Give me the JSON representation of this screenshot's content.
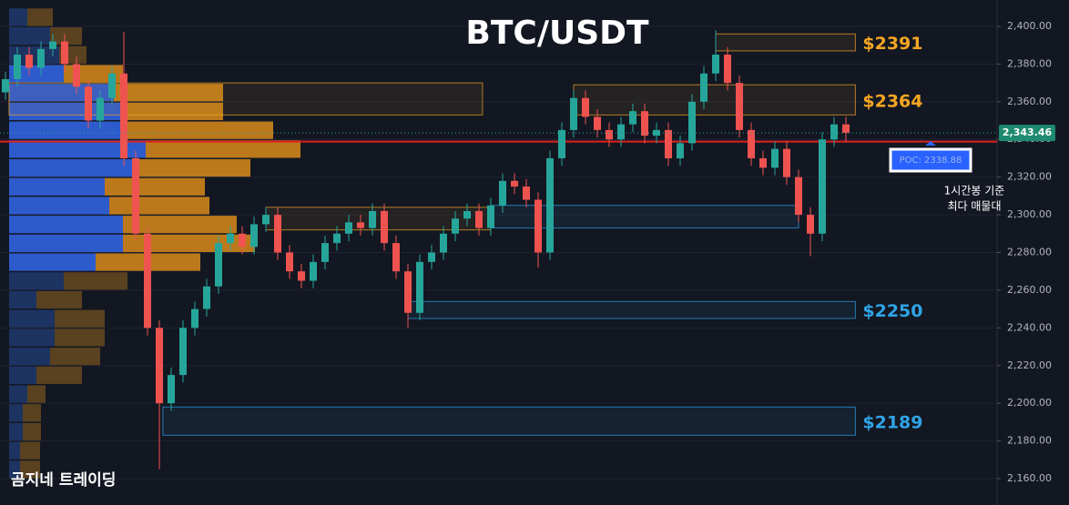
{
  "chart_data": {
    "type": "candlestick",
    "title": "BTC/USDT",
    "open": [
      2365,
      2372,
      2385,
      2378,
      2388,
      2392,
      2380,
      2368,
      2350,
      2362,
      2375,
      2330,
      2290,
      2240,
      2200,
      2215,
      2240,
      2250,
      2262,
      2285,
      2290,
      2283,
      2295,
      2300,
      2280,
      2270,
      2265,
      2275,
      2285,
      2290,
      2296,
      2293,
      2302,
      2285,
      2270,
      2248,
      2275,
      2280,
      2290,
      2298,
      2302,
      2293,
      2305,
      2318,
      2315,
      2308,
      2280,
      2330,
      2345,
      2362,
      2352,
      2345,
      2340,
      2348,
      2355,
      2342,
      2345,
      2330,
      2338,
      2360,
      2375,
      2385,
      2370,
      2345,
      2330,
      2325,
      2335,
      2320,
      2300,
      2290,
      2340,
      2348
    ],
    "high": [
      2376,
      2389,
      2389,
      2392,
      2396,
      2396,
      2384,
      2372,
      2366,
      2379,
      2397,
      2334,
      2294,
      2244,
      2219,
      2244,
      2254,
      2266,
      2289,
      2294,
      2294,
      2299,
      2304,
      2304,
      2284,
      2274,
      2279,
      2289,
      2294,
      2300,
      2300,
      2306,
      2306,
      2289,
      2274,
      2279,
      2284,
      2294,
      2302,
      2306,
      2306,
      2309,
      2322,
      2322,
      2319,
      2312,
      2334,
      2349,
      2366,
      2366,
      2356,
      2349,
      2352,
      2359,
      2359,
      2349,
      2349,
      2342,
      2364,
      2379,
      2398,
      2389,
      2374,
      2349,
      2334,
      2339,
      2339,
      2324,
      2304,
      2344,
      2352,
      2352
    ],
    "low": [
      2361,
      2368,
      2374,
      2374,
      2384,
      2376,
      2364,
      2346,
      2346,
      2358,
      2326,
      2286,
      2236,
      2165,
      2196,
      2211,
      2236,
      2246,
      2258,
      2281,
      2279,
      2279,
      2291,
      2276,
      2266,
      2261,
      2261,
      2271,
      2281,
      2286,
      2289,
      2289,
      2281,
      2266,
      2240,
      2244,
      2271,
      2276,
      2286,
      2294,
      2289,
      2289,
      2301,
      2311,
      2304,
      2272,
      2276,
      2326,
      2341,
      2348,
      2341,
      2336,
      2336,
      2344,
      2338,
      2338,
      2326,
      2326,
      2334,
      2356,
      2371,
      2366,
      2341,
      2326,
      2321,
      2321,
      2316,
      2296,
      2278,
      2286,
      2336,
      2339
    ],
    "close": [
      2372,
      2385,
      2378,
      2388,
      2392,
      2380,
      2368,
      2350,
      2362,
      2375,
      2330,
      2290,
      2240,
      2200,
      2215,
      2240,
      2250,
      2262,
      2285,
      2290,
      2283,
      2295,
      2300,
      2280,
      2270,
      2265,
      2275,
      2285,
      2290,
      2296,
      2293,
      2302,
      2285,
      2270,
      2248,
      2275,
      2280,
      2290,
      2298,
      2302,
      2293,
      2305,
      2318,
      2315,
      2308,
      2280,
      2330,
      2345,
      2362,
      2352,
      2345,
      2340,
      2348,
      2355,
      2342,
      2345,
      2330,
      2338,
      2360,
      2375,
      2385,
      2370,
      2345,
      2330,
      2325,
      2335,
      2320,
      2300,
      2290,
      2340,
      2348,
      2343.46
    ],
    "up_color": "#26a69a",
    "down_color": "#ef5350",
    "ylim": [
      2146,
      2414
    ],
    "yticks": [
      {
        "value": 2160,
        "label": "2,160.00"
      },
      {
        "value": 2180,
        "label": "2,180.00"
      },
      {
        "value": 2200,
        "label": "2,200.00"
      },
      {
        "value": 2220,
        "label": "2,220.00"
      },
      {
        "value": 2240,
        "label": "2,240.00"
      },
      {
        "value": 2260,
        "label": "2,260.00"
      },
      {
        "value": 2280,
        "label": "2,280.00"
      },
      {
        "value": 2300,
        "label": "2,300.00"
      },
      {
        "value": 2320,
        "label": "2,320.00"
      },
      {
        "value": 2340,
        "label": "2,340.00"
      },
      {
        "value": 2360,
        "label": "2,360.00"
      },
      {
        "value": 2380,
        "label": "2,380.00"
      },
      {
        "value": 2400,
        "label": "2,400.00"
      }
    ],
    "grid": true,
    "last_price": {
      "value": 2343.46,
      "label": "2,343.46"
    },
    "poc": {
      "value": 2338.88,
      "label": "POC: 2338.88"
    },
    "annotations": [
      "1시간봉 기준",
      "최다 매물대"
    ],
    "watermark": "곰지네 트레이딩",
    "zones": [
      {
        "low": 2387,
        "high": 2396,
        "start": 60,
        "end": 71.8,
        "color": "#f5a623",
        "label": "$2391"
      },
      {
        "low": 2353,
        "high": 2370,
        "start": 0.3,
        "end": 40.3,
        "color": "#f5a623"
      },
      {
        "low": 2353,
        "high": 2369,
        "start": 48,
        "end": 71.8,
        "color": "#f5a623",
        "label": "$2364"
      },
      {
        "low": 2292,
        "high": 2304,
        "start": 22,
        "end": 41,
        "color": "#f5a623"
      },
      {
        "low": 2293,
        "high": 2305,
        "start": 41,
        "end": 67,
        "color": "#2fa4e7"
      },
      {
        "low": 2245,
        "high": 2254,
        "start": 34,
        "end": 71.8,
        "color": "#2fa4e7",
        "label": "$2250"
      },
      {
        "low": 2183,
        "high": 2198,
        "start": 13.3,
        "end": 71.8,
        "color": "#2fa4e7",
        "label": "$2189"
      }
    ],
    "volume_profile": {
      "levels": [
        2405,
        2395,
        2385,
        2375,
        2365,
        2355,
        2345,
        2335,
        2325,
        2315,
        2305,
        2295,
        2285,
        2275,
        2265,
        2255,
        2245,
        2235,
        2225,
        2215,
        2205,
        2195,
        2185,
        2175,
        2165
      ],
      "buy": [
        20,
        45,
        55,
        60,
        115,
        125,
        130,
        150,
        135,
        105,
        110,
        125,
        125,
        95,
        60,
        30,
        50,
        50,
        45,
        30,
        20,
        15,
        15,
        12,
        12
      ],
      "sell": [
        28,
        35,
        30,
        65,
        120,
        110,
        160,
        170,
        130,
        110,
        110,
        125,
        145,
        115,
        70,
        50,
        55,
        55,
        55,
        50,
        20,
        20,
        20,
        22,
        22
      ],
      "value_area": [
        2270,
        2380
      ]
    }
  }
}
